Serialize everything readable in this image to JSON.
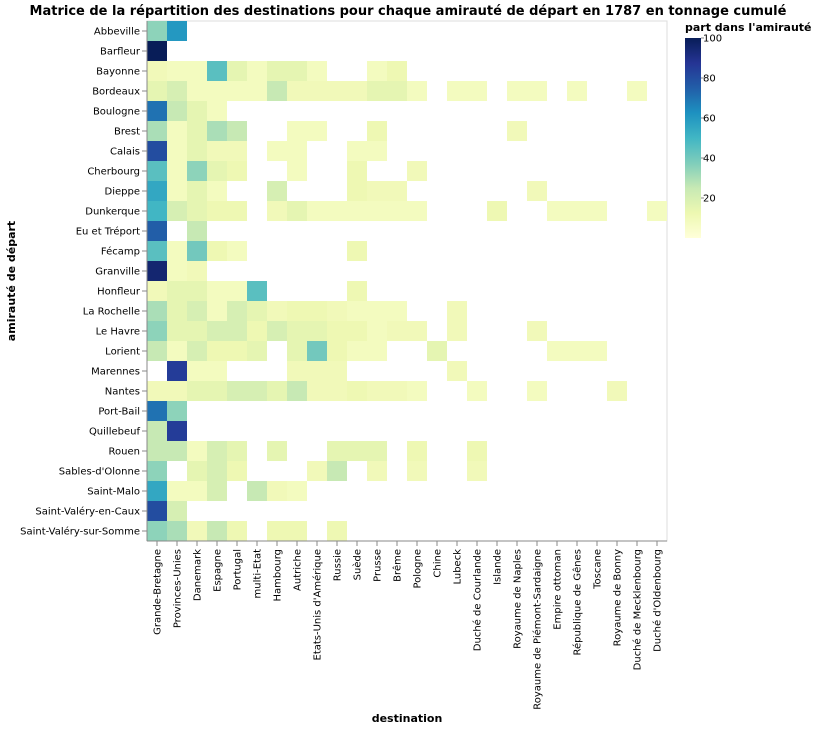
{
  "chart_data": {
    "type": "heatmap",
    "title": "Matrice de la répartition des destinations pour chaque amirauté de départ en 1787 en tonnage cumulé",
    "xlabel": "destination",
    "ylabel": "amirauté de départ",
    "legend": {
      "title": "part dans l'amirauté",
      "ticks": [
        20,
        40,
        60,
        80,
        100
      ],
      "range": [
        0,
        100
      ],
      "placement": "right",
      "colors": [
        "#ffffd9",
        "#edf8b1",
        "#c7e9b4",
        "#7fcdbb",
        "#41b6c4",
        "#1d91c0",
        "#225ea8",
        "#253494",
        "#081d58"
      ]
    },
    "x": [
      "Grande-Bretagne",
      "Provinces-Unies",
      "Danemark",
      "Espagne",
      "Portugal",
      "multi-Etat",
      "Hambourg",
      "Autriche",
      "Etats-Unis d'Amérique",
      "Russie",
      "Suède",
      "Prusse",
      "Brême",
      "Pologne",
      "Chine",
      "Lubeck",
      "Duché de Courlande",
      "Islande",
      "Royaume de Naples",
      "Royaume de Piémont-Sardaigne",
      "Empire ottoman",
      "République de Gênes",
      "Toscane",
      "Royaume de Bonny",
      "Duché de Mecklenbourg",
      "Duché d'Oldenbourg"
    ],
    "y": [
      "Abbeville",
      "Barfleur",
      "Bayonne",
      "Bordeaux",
      "Boulogne",
      "Brest",
      "Calais",
      "Cherbourg",
      "Dieppe",
      "Dunkerque",
      "Eu et Tréport",
      "Fécamp",
      "Granville",
      "Honfleur",
      "La Rochelle",
      "Le Havre",
      "Lorient",
      "Marennes",
      "Nantes",
      "Port-Bail",
      "Quillebeuf",
      "Rouen",
      "Sables-d'Olonne",
      "Saint-Malo",
      "Saint-Valéry-en-Caux",
      "Saint-Valéry-sur-Somme"
    ],
    "values": [
      [
        35,
        60,
        null,
        null,
        null,
        null,
        null,
        null,
        null,
        null,
        null,
        null,
        null,
        null,
        null,
        null,
        null,
        null,
        null,
        null,
        null,
        null,
        null,
        null,
        null,
        null
      ],
      [
        100,
        null,
        null,
        null,
        null,
        null,
        null,
        null,
        null,
        null,
        null,
        null,
        null,
        null,
        null,
        null,
        null,
        null,
        null,
        null,
        null,
        null,
        null,
        null,
        null,
        null
      ],
      [
        10,
        8,
        8,
        45,
        15,
        8,
        15,
        15,
        8,
        null,
        null,
        8,
        12,
        null,
        null,
        null,
        null,
        null,
        null,
        null,
        null,
        null,
        null,
        null,
        null,
        null
      ],
      [
        15,
        20,
        8,
        8,
        8,
        8,
        25,
        10,
        10,
        10,
        10,
        15,
        15,
        8,
        null,
        8,
        8,
        null,
        8,
        8,
        null,
        8,
        null,
        null,
        8,
        null
      ],
      [
        70,
        25,
        15,
        8,
        null,
        null,
        null,
        null,
        null,
        null,
        null,
        null,
        null,
        null,
        null,
        null,
        null,
        null,
        null,
        null,
        null,
        null,
        null,
        null,
        null,
        null
      ],
      [
        30,
        8,
        15,
        30,
        25,
        null,
        null,
        8,
        8,
        null,
        null,
        12,
        null,
        null,
        null,
        null,
        null,
        null,
        10,
        null,
        null,
        null,
        null,
        null,
        null,
        null
      ],
      [
        80,
        8,
        15,
        10,
        10,
        null,
        8,
        8,
        null,
        null,
        8,
        8,
        null,
        null,
        null,
        null,
        null,
        null,
        null,
        null,
        null,
        null,
        null,
        null,
        null,
        null
      ],
      [
        45,
        8,
        35,
        15,
        12,
        null,
        null,
        8,
        null,
        null,
        12,
        null,
        null,
        10,
        null,
        null,
        null,
        null,
        null,
        null,
        null,
        null,
        null,
        null,
        null,
        null
      ],
      [
        55,
        8,
        15,
        8,
        null,
        null,
        20,
        null,
        null,
        null,
        12,
        10,
        10,
        null,
        null,
        null,
        null,
        null,
        null,
        10,
        null,
        null,
        null,
        null,
        null,
        null
      ],
      [
        50,
        20,
        15,
        12,
        12,
        null,
        10,
        15,
        8,
        8,
        8,
        8,
        8,
        8,
        null,
        null,
        null,
        12,
        null,
        null,
        8,
        8,
        8,
        null,
        null,
        8
      ],
      [
        75,
        null,
        25,
        null,
        null,
        null,
        null,
        null,
        null,
        null,
        null,
        null,
        null,
        null,
        null,
        null,
        null,
        null,
        null,
        null,
        null,
        null,
        null,
        null,
        null,
        null
      ],
      [
        45,
        8,
        40,
        12,
        8,
        null,
        null,
        null,
        null,
        null,
        12,
        null,
        null,
        null,
        null,
        null,
        null,
        null,
        null,
        null,
        null,
        null,
        null,
        null,
        null,
        null
      ],
      [
        95,
        8,
        10,
        null,
        null,
        null,
        null,
        null,
        null,
        null,
        null,
        null,
        null,
        null,
        null,
        null,
        null,
        null,
        null,
        null,
        null,
        null,
        null,
        null,
        null,
        null
      ],
      [
        10,
        15,
        15,
        8,
        8,
        45,
        null,
        null,
        null,
        null,
        12,
        null,
        null,
        null,
        null,
        null,
        null,
        null,
        null,
        null,
        null,
        null,
        null,
        null,
        null,
        null
      ],
      [
        30,
        15,
        20,
        8,
        20,
        15,
        10,
        12,
        12,
        10,
        8,
        8,
        8,
        null,
        null,
        10,
        null,
        null,
        null,
        null,
        null,
        null,
        null,
        null,
        null,
        null
      ],
      [
        35,
        15,
        15,
        20,
        20,
        12,
        20,
        15,
        15,
        12,
        12,
        8,
        10,
        10,
        null,
        10,
        null,
        null,
        null,
        10,
        null,
        null,
        null,
        null,
        null,
        null
      ],
      [
        25,
        8,
        20,
        12,
        12,
        15,
        null,
        15,
        40,
        12,
        8,
        8,
        null,
        null,
        15,
        null,
        null,
        null,
        null,
        null,
        8,
        8,
        8,
        null,
        null,
        null
      ],
      [
        null,
        85,
        8,
        8,
        null,
        null,
        null,
        10,
        10,
        10,
        null,
        null,
        null,
        null,
        null,
        10,
        null,
        null,
        null,
        null,
        null,
        null,
        null,
        null,
        null,
        null
      ],
      [
        10,
        10,
        15,
        15,
        20,
        20,
        15,
        25,
        10,
        10,
        12,
        10,
        10,
        8,
        null,
        null,
        8,
        null,
        null,
        8,
        null,
        null,
        null,
        10,
        null,
        null
      ],
      [
        70,
        35,
        null,
        null,
        null,
        null,
        null,
        null,
        null,
        null,
        null,
        null,
        null,
        null,
        null,
        null,
        null,
        null,
        null,
        null,
        null,
        null,
        null,
        null,
        null,
        null
      ],
      [
        25,
        85,
        null,
        null,
        null,
        null,
        null,
        null,
        null,
        null,
        null,
        null,
        null,
        null,
        null,
        null,
        null,
        null,
        null,
        null,
        null,
        null,
        null,
        null,
        null,
        null
      ],
      [
        25,
        25,
        8,
        20,
        15,
        null,
        15,
        null,
        null,
        15,
        15,
        15,
        null,
        12,
        null,
        null,
        12,
        null,
        null,
        null,
        null,
        null,
        null,
        null,
        null,
        null
      ],
      [
        35,
        null,
        15,
        20,
        12,
        null,
        null,
        null,
        10,
        25,
        null,
        10,
        null,
        10,
        null,
        null,
        10,
        null,
        null,
        null,
        null,
        null,
        null,
        null,
        null,
        null
      ],
      [
        55,
        8,
        8,
        20,
        null,
        25,
        10,
        8,
        null,
        null,
        null,
        null,
        null,
        null,
        null,
        null,
        null,
        null,
        null,
        null,
        null,
        null,
        null,
        null,
        null,
        null
      ],
      [
        80,
        20,
        null,
        null,
        null,
        null,
        null,
        null,
        null,
        null,
        null,
        null,
        null,
        null,
        null,
        null,
        null,
        null,
        null,
        null,
        null,
        null,
        null,
        null,
        null,
        null
      ],
      [
        35,
        30,
        10,
        25,
        12,
        null,
        12,
        12,
        null,
        12,
        null,
        null,
        null,
        null,
        null,
        null,
        null,
        null,
        null,
        null,
        null,
        null,
        null,
        null,
        null,
        null
      ]
    ]
  }
}
